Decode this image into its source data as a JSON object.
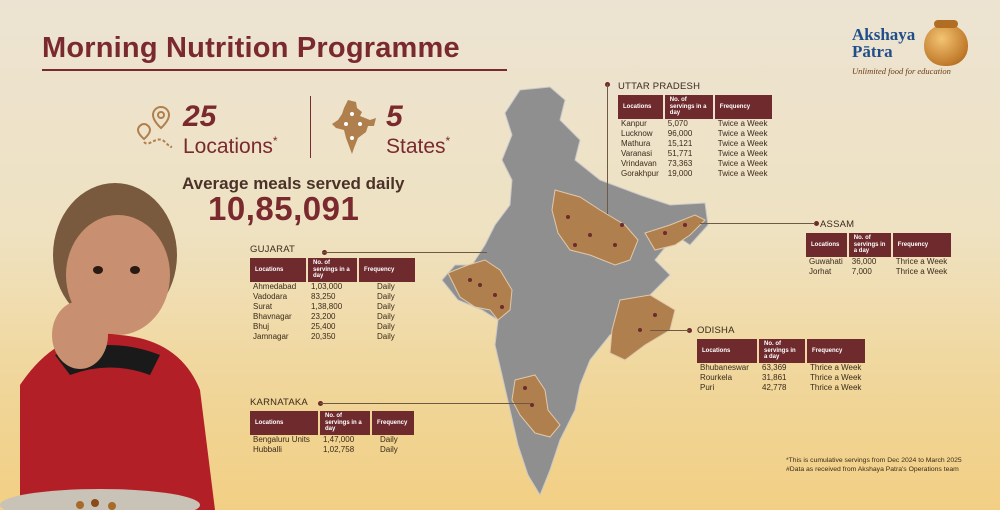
{
  "header": {
    "title": "Morning Nutrition Programme",
    "brand_line1": "Akshaya",
    "brand_line2": "Pātra",
    "brand_tagline": "Unlimited food for education"
  },
  "stats": {
    "locations_count": "25",
    "locations_label": "Locations",
    "locations_mark": "*",
    "states_count": "5",
    "states_label": "States",
    "states_mark": "*",
    "avg_label": "Average meals served daily",
    "avg_value": "10,85,091"
  },
  "icons": [
    "location-route-icon",
    "india-map-icon",
    "girl-photo"
  ],
  "colors": {
    "accent": "#7a2a2e",
    "header_cell": "#6e2a2c",
    "highlight_state": "#b07f4e",
    "map_gray": "#8f8f8f"
  },
  "tables": {
    "col_locations": "Locations",
    "col_servings": "No. of servings in a day",
    "col_frequency": "Frequency"
  },
  "uttar_pradesh": {
    "name": "UTTAR PRADESH",
    "rows": [
      {
        "loc": "Kanpur",
        "serv": "5,070",
        "freq": "Twice a Week"
      },
      {
        "loc": "Lucknow",
        "serv": "96,000",
        "freq": "Twice a Week"
      },
      {
        "loc": "Mathura",
        "serv": "15,121",
        "freq": "Twice a Week"
      },
      {
        "loc": "Varanasi",
        "serv": "51,771",
        "freq": "Twice a Week"
      },
      {
        "loc": "Vrindavan",
        "serv": "73,363",
        "freq": "Twice a Week"
      },
      {
        "loc": "Gorakhpur",
        "serv": "19,000",
        "freq": "Twice a Week"
      }
    ]
  },
  "gujarat": {
    "name": "GUJARAT",
    "rows": [
      {
        "loc": "Ahmedabad",
        "serv": "1,03,000",
        "freq": "Daily"
      },
      {
        "loc": "Vadodara",
        "serv": "83,250",
        "freq": "Daily"
      },
      {
        "loc": "Surat",
        "serv": "1,38,800",
        "freq": "Daily"
      },
      {
        "loc": "Bhavnagar",
        "serv": "23,200",
        "freq": "Daily"
      },
      {
        "loc": "Bhuj",
        "serv": "25,400",
        "freq": "Daily"
      },
      {
        "loc": "Jamnagar",
        "serv": "20,350",
        "freq": "Daily"
      }
    ]
  },
  "assam": {
    "name": "ASSAM",
    "rows": [
      {
        "loc": "Guwahati",
        "serv": "36,000",
        "freq": "Thrice a Week"
      },
      {
        "loc": "Jorhat",
        "serv": "7,000",
        "freq": "Thrice a Week"
      }
    ]
  },
  "odisha": {
    "name": "ODISHA",
    "rows": [
      {
        "loc": "Bhubaneswar",
        "serv": "63,369",
        "freq": "Thrice a Week"
      },
      {
        "loc": "Rourkela",
        "serv": "31,861",
        "freq": "Thrice a Week"
      },
      {
        "loc": "Puri",
        "serv": "42,778",
        "freq": "Thrice a Week"
      }
    ]
  },
  "karnataka": {
    "name": "KARNATAKA",
    "rows": [
      {
        "loc": "Bengaluru Units",
        "serv": "1,47,000",
        "freq": "Daily"
      },
      {
        "loc": "Hubballi",
        "serv": "1,02,758",
        "freq": "Daily"
      }
    ]
  },
  "footnotes": {
    "line1": "*This is cumulative servings from Dec 2024 to March 2025",
    "line2": "#Data as received from Akshaya Patra's Operations team"
  }
}
